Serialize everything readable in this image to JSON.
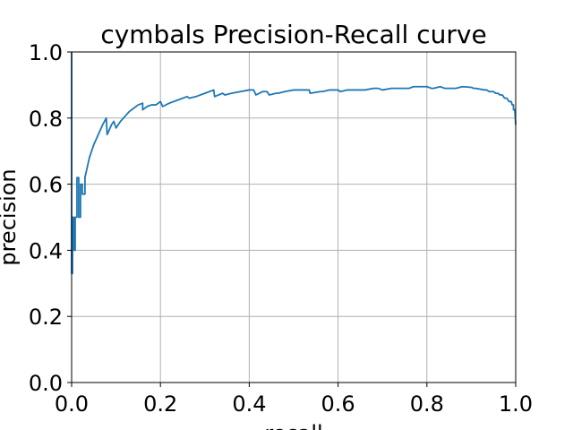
{
  "chart_data": {
    "type": "line",
    "title": "cymbals Precision-Recall curve",
    "xlabel": "recall",
    "ylabel": "precision",
    "xlim": [
      0.0,
      1.0
    ],
    "ylim": [
      0.0,
      1.0
    ],
    "xticks": [
      "0.0",
      "0.2",
      "0.4",
      "0.6",
      "0.8",
      "1.0"
    ],
    "yticks": [
      "0.0",
      "0.2",
      "0.4",
      "0.6",
      "0.8",
      "1.0"
    ],
    "grid": true,
    "series_color": "#1f77b4",
    "series": [
      {
        "x": [
          0.0,
          0.0,
          0.002,
          0.002,
          0.005,
          0.005,
          0.008,
          0.008,
          0.012,
          0.012,
          0.016,
          0.016,
          0.02,
          0.02,
          0.024,
          0.024,
          0.03,
          0.03,
          0.04,
          0.05,
          0.06,
          0.07,
          0.078,
          0.08,
          0.09,
          0.095,
          0.1,
          0.11,
          0.12,
          0.13,
          0.14,
          0.15,
          0.16,
          0.16,
          0.17,
          0.18,
          0.19,
          0.2,
          0.205,
          0.22,
          0.24,
          0.26,
          0.265,
          0.28,
          0.3,
          0.32,
          0.322,
          0.34,
          0.345,
          0.36,
          0.38,
          0.4,
          0.41,
          0.415,
          0.43,
          0.44,
          0.445,
          0.46,
          0.465,
          0.48,
          0.5,
          0.52,
          0.535,
          0.537,
          0.56,
          0.565,
          0.58,
          0.6,
          0.605,
          0.62,
          0.64,
          0.66,
          0.68,
          0.69,
          0.7,
          0.72,
          0.74,
          0.76,
          0.77,
          0.8,
          0.81,
          0.815,
          0.83,
          0.84,
          0.86,
          0.865,
          0.88,
          0.9,
          0.905,
          0.91,
          0.93,
          0.935,
          0.94,
          0.95,
          0.955,
          0.96,
          0.965,
          0.97,
          0.975,
          0.98,
          0.985,
          0.99,
          0.992,
          0.995,
          0.995,
          0.998,
          1.0
        ],
        "y": [
          1.0,
          0.33,
          0.33,
          0.5,
          0.5,
          0.4,
          0.4,
          0.5,
          0.5,
          0.62,
          0.62,
          0.5,
          0.5,
          0.6,
          0.6,
          0.57,
          0.57,
          0.62,
          0.68,
          0.72,
          0.75,
          0.78,
          0.8,
          0.75,
          0.78,
          0.79,
          0.77,
          0.79,
          0.805,
          0.82,
          0.83,
          0.84,
          0.845,
          0.825,
          0.835,
          0.84,
          0.84,
          0.85,
          0.835,
          0.845,
          0.855,
          0.865,
          0.86,
          0.865,
          0.875,
          0.885,
          0.865,
          0.875,
          0.87,
          0.875,
          0.88,
          0.885,
          0.885,
          0.87,
          0.88,
          0.88,
          0.87,
          0.875,
          0.875,
          0.88,
          0.885,
          0.885,
          0.885,
          0.875,
          0.88,
          0.88,
          0.885,
          0.885,
          0.88,
          0.885,
          0.885,
          0.885,
          0.89,
          0.89,
          0.885,
          0.89,
          0.89,
          0.89,
          0.895,
          0.895,
          0.89,
          0.89,
          0.895,
          0.89,
          0.89,
          0.89,
          0.895,
          0.893,
          0.89,
          0.89,
          0.885,
          0.885,
          0.88,
          0.88,
          0.875,
          0.875,
          0.87,
          0.87,
          0.86,
          0.86,
          0.85,
          0.85,
          0.84,
          0.84,
          0.825,
          0.825,
          0.78
        ]
      }
    ]
  }
}
